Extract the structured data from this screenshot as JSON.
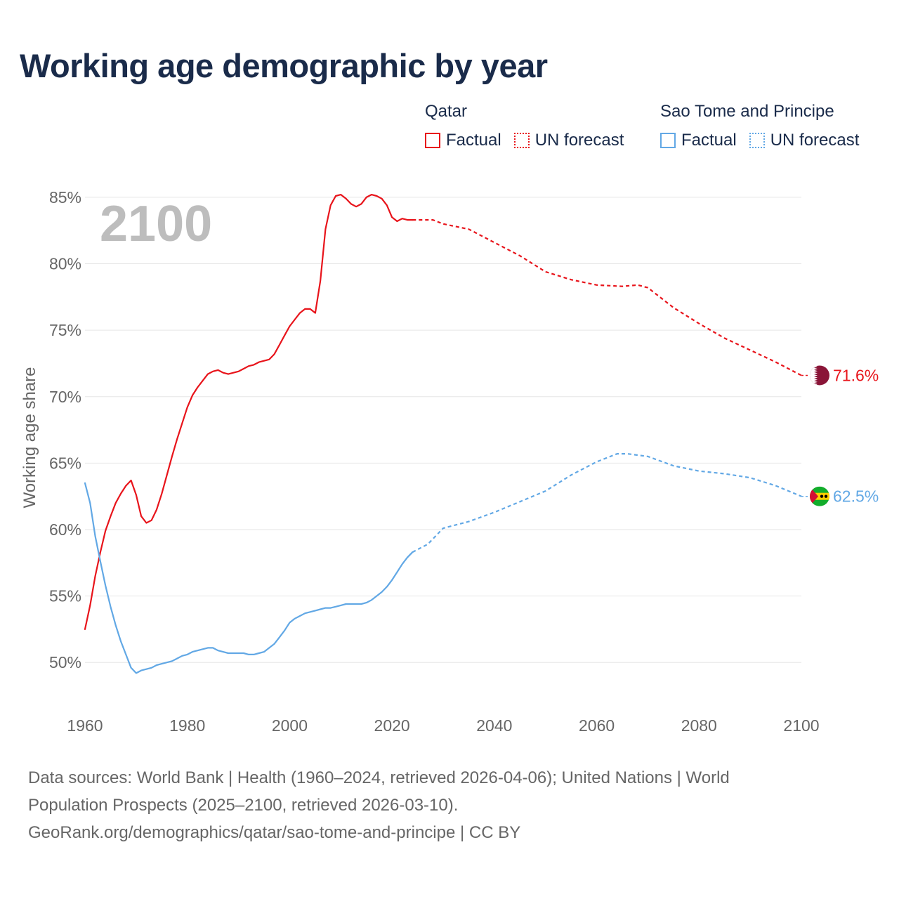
{
  "title": "Working age demographic by year",
  "legend": {
    "groups": [
      {
        "country": "Qatar",
        "color": "#e8141b",
        "factual_label": "Factual",
        "forecast_label": "UN forecast"
      },
      {
        "country": "Sao Tome and Principe",
        "color": "#62a8e5",
        "factual_label": "Factual",
        "forecast_label": "UN forecast"
      }
    ]
  },
  "year_watermark": "2100",
  "chart_data": {
    "type": "line",
    "title": "Working age demographic by year",
    "xlabel": "",
    "ylabel": "Working age share",
    "xlim": [
      1960,
      2100
    ],
    "ylim": [
      47,
      86
    ],
    "x_ticks": [
      1960,
      1980,
      2000,
      2020,
      2040,
      2060,
      2080,
      2100
    ],
    "x_tick_labels": [
      "1960",
      "1980",
      "2000",
      "2020",
      "2040",
      "2060",
      "2080",
      "2100"
    ],
    "y_ticks": [
      50,
      55,
      60,
      65,
      70,
      75,
      80,
      85
    ],
    "y_tick_labels": [
      "50%",
      "55%",
      "60%",
      "65%",
      "70%",
      "75%",
      "80%",
      "85%"
    ],
    "grid": true,
    "forecast_start_year": 2024,
    "series": [
      {
        "name": "Qatar",
        "color": "#e8141b",
        "end_label": "71.6%",
        "flag": "qatar-flag",
        "points": [
          [
            1960,
            52.5
          ],
          [
            1961,
            54.3
          ],
          [
            1962,
            56.5
          ],
          [
            1963,
            58.3
          ],
          [
            1964,
            59.9
          ],
          [
            1965,
            61.0
          ],
          [
            1966,
            62.0
          ],
          [
            1967,
            62.7
          ],
          [
            1968,
            63.3
          ],
          [
            1969,
            63.7
          ],
          [
            1970,
            62.6
          ],
          [
            1971,
            61.0
          ],
          [
            1972,
            60.5
          ],
          [
            1973,
            60.7
          ],
          [
            1974,
            61.5
          ],
          [
            1975,
            62.7
          ],
          [
            1976,
            64.1
          ],
          [
            1977,
            65.5
          ],
          [
            1978,
            66.8
          ],
          [
            1979,
            68.0
          ],
          [
            1980,
            69.2
          ],
          [
            1981,
            70.1
          ],
          [
            1982,
            70.7
          ],
          [
            1983,
            71.2
          ],
          [
            1984,
            71.7
          ],
          [
            1985,
            71.9
          ],
          [
            1986,
            72.0
          ],
          [
            1987,
            71.8
          ],
          [
            1988,
            71.7
          ],
          [
            1989,
            71.8
          ],
          [
            1990,
            71.9
          ],
          [
            1991,
            72.1
          ],
          [
            1992,
            72.3
          ],
          [
            1993,
            72.4
          ],
          [
            1994,
            72.6
          ],
          [
            1995,
            72.7
          ],
          [
            1996,
            72.8
          ],
          [
            1997,
            73.2
          ],
          [
            1998,
            73.9
          ],
          [
            1999,
            74.6
          ],
          [
            2000,
            75.3
          ],
          [
            2001,
            75.8
          ],
          [
            2002,
            76.3
          ],
          [
            2003,
            76.6
          ],
          [
            2004,
            76.6
          ],
          [
            2005,
            76.3
          ],
          [
            2006,
            78.7
          ],
          [
            2007,
            82.6
          ],
          [
            2008,
            84.4
          ],
          [
            2009,
            85.1
          ],
          [
            2010,
            85.2
          ],
          [
            2011,
            84.9
          ],
          [
            2012,
            84.5
          ],
          [
            2013,
            84.3
          ],
          [
            2014,
            84.5
          ],
          [
            2015,
            85.0
          ],
          [
            2016,
            85.2
          ],
          [
            2017,
            85.1
          ],
          [
            2018,
            84.9
          ],
          [
            2019,
            84.4
          ],
          [
            2020,
            83.5
          ],
          [
            2021,
            83.2
          ],
          [
            2022,
            83.4
          ],
          [
            2023,
            83.3
          ],
          [
            2024,
            83.3
          ],
          [
            2028,
            83.3
          ],
          [
            2030,
            83.0
          ],
          [
            2035,
            82.6
          ],
          [
            2040,
            81.6
          ],
          [
            2045,
            80.6
          ],
          [
            2050,
            79.4
          ],
          [
            2055,
            78.8
          ],
          [
            2060,
            78.4
          ],
          [
            2065,
            78.3
          ],
          [
            2068,
            78.4
          ],
          [
            2070,
            78.2
          ],
          [
            2075,
            76.7
          ],
          [
            2080,
            75.5
          ],
          [
            2085,
            74.4
          ],
          [
            2090,
            73.5
          ],
          [
            2095,
            72.6
          ],
          [
            2100,
            71.6
          ]
        ]
      },
      {
        "name": "Sao Tome and Principe",
        "color": "#62a8e5",
        "end_label": "62.5%",
        "flag": "sao-tome-and-principe-flag",
        "points": [
          [
            1960,
            63.5
          ],
          [
            1961,
            62.0
          ],
          [
            1962,
            59.5
          ],
          [
            1963,
            57.6
          ],
          [
            1964,
            55.8
          ],
          [
            1965,
            54.2
          ],
          [
            1966,
            52.8
          ],
          [
            1967,
            51.6
          ],
          [
            1968,
            50.6
          ],
          [
            1969,
            49.6
          ],
          [
            1970,
            49.2
          ],
          [
            1971,
            49.4
          ],
          [
            1972,
            49.5
          ],
          [
            1973,
            49.6
          ],
          [
            1974,
            49.8
          ],
          [
            1975,
            49.9
          ],
          [
            1976,
            50.0
          ],
          [
            1977,
            50.1
          ],
          [
            1978,
            50.3
          ],
          [
            1979,
            50.5
          ],
          [
            1980,
            50.6
          ],
          [
            1981,
            50.8
          ],
          [
            1982,
            50.9
          ],
          [
            1983,
            51.0
          ],
          [
            1984,
            51.1
          ],
          [
            1985,
            51.1
          ],
          [
            1986,
            50.9
          ],
          [
            1987,
            50.8
          ],
          [
            1988,
            50.7
          ],
          [
            1989,
            50.7
          ],
          [
            1990,
            50.7
          ],
          [
            1991,
            50.7
          ],
          [
            1992,
            50.6
          ],
          [
            1993,
            50.6
          ],
          [
            1994,
            50.7
          ],
          [
            1995,
            50.8
          ],
          [
            1996,
            51.1
          ],
          [
            1997,
            51.4
          ],
          [
            1998,
            51.9
          ],
          [
            1999,
            52.4
          ],
          [
            2000,
            53.0
          ],
          [
            2001,
            53.3
          ],
          [
            2002,
            53.5
          ],
          [
            2003,
            53.7
          ],
          [
            2004,
            53.8
          ],
          [
            2005,
            53.9
          ],
          [
            2006,
            54.0
          ],
          [
            2007,
            54.1
          ],
          [
            2008,
            54.1
          ],
          [
            2009,
            54.2
          ],
          [
            2010,
            54.3
          ],
          [
            2011,
            54.4
          ],
          [
            2012,
            54.4
          ],
          [
            2013,
            54.4
          ],
          [
            2014,
            54.4
          ],
          [
            2015,
            54.5
          ],
          [
            2016,
            54.7
          ],
          [
            2017,
            55.0
          ],
          [
            2018,
            55.3
          ],
          [
            2019,
            55.7
          ],
          [
            2020,
            56.2
          ],
          [
            2021,
            56.8
          ],
          [
            2022,
            57.4
          ],
          [
            2023,
            57.9
          ],
          [
            2024,
            58.3
          ],
          [
            2027,
            58.9
          ],
          [
            2030,
            60.1
          ],
          [
            2035,
            60.6
          ],
          [
            2040,
            61.3
          ],
          [
            2045,
            62.1
          ],
          [
            2050,
            62.9
          ],
          [
            2055,
            64.1
          ],
          [
            2060,
            65.1
          ],
          [
            2064,
            65.7
          ],
          [
            2066,
            65.7
          ],
          [
            2070,
            65.5
          ],
          [
            2075,
            64.8
          ],
          [
            2080,
            64.4
          ],
          [
            2085,
            64.2
          ],
          [
            2090,
            63.9
          ],
          [
            2095,
            63.3
          ],
          [
            2100,
            62.5
          ]
        ]
      }
    ]
  },
  "footer": {
    "line1": "Data sources: World Bank | Health (1960–2024, retrieved 2026-04-06); United Nations | World",
    "line2": "Population Prospects (2025–2100, retrieved 2026-03-10).",
    "line3": "GeoRank.org/demographics/qatar/sao-tome-and-principe | CC BY"
  }
}
